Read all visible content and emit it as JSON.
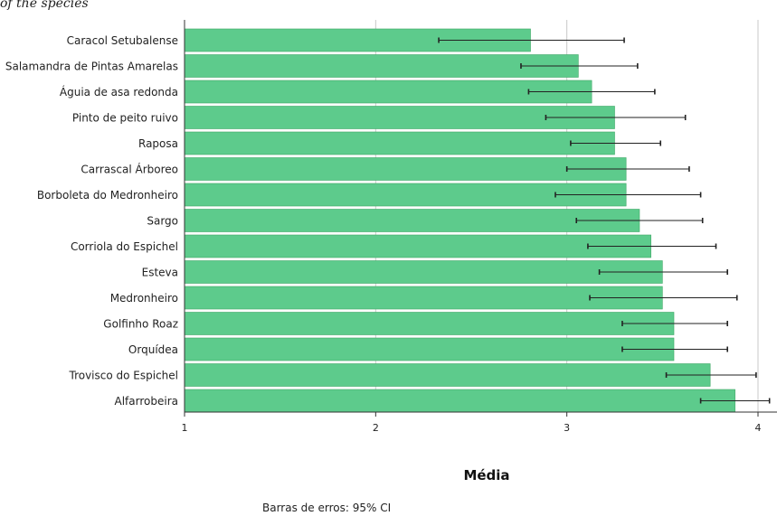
{
  "header": {
    "title": "of the species"
  },
  "chart_data": {
    "type": "bar",
    "orientation": "horizontal",
    "xlabel": "Média",
    "xlim": [
      1,
      4.1
    ],
    "xticks": [
      1,
      2,
      3,
      4
    ],
    "grid": "vertical",
    "bar_color": "#5dcb8c",
    "error_bar_note": "Barras de erros: 95% CI",
    "categories": [
      "Caracol Setubalense",
      "Salamandra de Pintas Amarelas",
      "Águia de asa redonda",
      "Pinto de peito ruivo",
      "Raposa",
      "Carrascal Árboreo",
      "Borboleta do Medronheiro",
      "Sargo",
      "Corriola do Espichel",
      "Esteva",
      "Medronheiro",
      "Golfinho Roaz",
      "Orquídea",
      "Trovisco do Espichel",
      "Alfarrobeira"
    ],
    "values": [
      2.81,
      3.06,
      3.13,
      3.25,
      3.25,
      3.31,
      3.31,
      3.38,
      3.44,
      3.5,
      3.5,
      3.56,
      3.56,
      3.75,
      3.88
    ],
    "ci_lower": [
      2.33,
      2.76,
      2.8,
      2.89,
      3.02,
      3.0,
      2.94,
      3.05,
      3.11,
      3.17,
      3.12,
      3.29,
      3.29,
      3.52,
      3.7
    ],
    "ci_upper": [
      3.3,
      3.37,
      3.46,
      3.62,
      3.49,
      3.64,
      3.7,
      3.71,
      3.78,
      3.84,
      3.89,
      3.84,
      3.84,
      3.99,
      4.06
    ]
  }
}
